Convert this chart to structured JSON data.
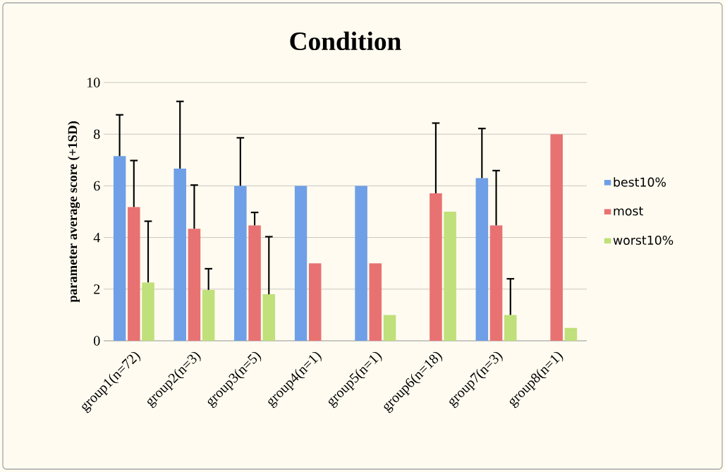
{
  "chart_data": {
    "type": "bar",
    "title": "Condition",
    "ylabel": "parameter average score (+1SD)",
    "categories": [
      "group1(n=72)",
      "group2(n=3)",
      "group3(n=5)",
      "group4(n=1)",
      "group5(n=1)",
      "group6(n=18)",
      "group7(n=3)",
      "group8(n=1)"
    ],
    "series": [
      {
        "name": "best10%",
        "color": "#6f9fe6",
        "values": [
          7.15,
          6.67,
          6.0,
          6.0,
          6.0,
          null,
          6.3,
          null
        ],
        "errors": [
          1.6,
          2.6,
          1.86,
          null,
          null,
          null,
          1.92,
          null
        ]
      },
      {
        "name": "most",
        "color": "#e87272",
        "values": [
          5.18,
          4.34,
          4.47,
          3.0,
          3.0,
          5.71,
          4.47,
          8.0
        ],
        "errors": [
          1.8,
          1.69,
          0.5,
          null,
          null,
          2.72,
          2.12,
          null
        ]
      },
      {
        "name": "worst10%",
        "color": "#bfe07a",
        "values": [
          2.26,
          1.97,
          1.8,
          null,
          1.0,
          5.0,
          1.0,
          0.5
        ],
        "errors": [
          2.37,
          0.82,
          2.23,
          null,
          null,
          null,
          1.4,
          null
        ]
      }
    ],
    "ylim": [
      0,
      10
    ],
    "yticks": [
      0,
      2,
      4,
      6,
      8,
      10
    ],
    "grid": "y",
    "legend": "right"
  }
}
